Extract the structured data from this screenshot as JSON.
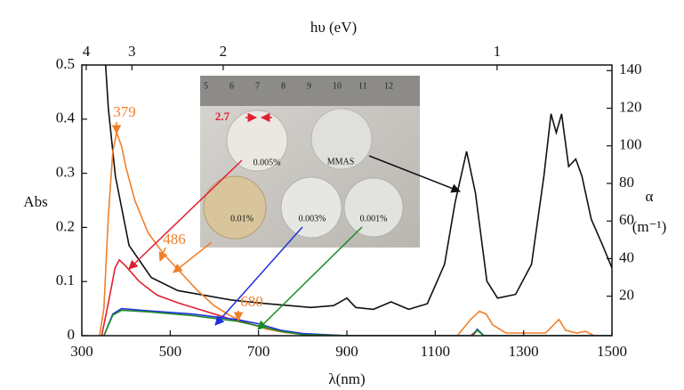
{
  "chart_data": {
    "type": "line",
    "xlabel": "λ(nm)",
    "ylabel": "Abs",
    "y2label": "α",
    "y2unit": "(m⁻¹)",
    "x2label": "hυ (eV)",
    "xlim": [
      300,
      1500
    ],
    "xticks": [
      300,
      500,
      700,
      900,
      1100,
      1300,
      1500
    ],
    "ylim": [
      0,
      0.5
    ],
    "yticks": [
      0,
      0.1,
      0.2,
      0.3,
      0.4,
      0.5
    ],
    "y2lim": [
      -1,
      143
    ],
    "y2ticks": [
      20,
      40,
      60,
      80,
      100,
      120,
      140
    ],
    "x2ticks": [
      4,
      3,
      2,
      1
    ],
    "series": [
      {
        "color": "#111111",
        "axis": "y2",
        "x": [
          352,
          360,
          376,
          407,
          457,
          517,
          638,
          719,
          819,
          870,
          900,
          920,
          960,
          1000,
          1040,
          1082,
          1121,
          1145,
          1171,
          1191,
          1217,
          1241,
          1282,
          1318,
          1346,
          1362,
          1374,
          1386,
          1402,
          1418,
          1432,
          1453,
          1479,
          1500
        ],
        "values": [
          150,
          120,
          84,
          47,
          30,
          23,
          18,
          16,
          14,
          15,
          19,
          14,
          13,
          17,
          13,
          16,
          37,
          70,
          97,
          75,
          28,
          19,
          21,
          37,
          84,
          117,
          107,
          117,
          89,
          93,
          84,
          61,
          47,
          35
        ]
      },
      {
        "color": "#f07f2a",
        "x": [
          340,
          350,
          360,
          370,
          379,
          390,
          400,
          420,
          450,
          486,
          520,
          560,
          600,
          640,
          680,
          720,
          760,
          800,
          850,
          900,
          1000,
          1150,
          1180,
          1200,
          1215,
          1230,
          1260,
          1350,
          1380,
          1395,
          1420,
          1440,
          1460
        ],
        "values": [
          0,
          0.05,
          0.22,
          0.34,
          0.375,
          0.35,
          0.31,
          0.25,
          0.19,
          0.15,
          0.12,
          0.085,
          0.055,
          0.035,
          0.022,
          0.012,
          0.006,
          0.003,
          0.001,
          0,
          0,
          0,
          0.03,
          0.045,
          0.04,
          0.02,
          0.005,
          0.005,
          0.03,
          0.01,
          0.005,
          0.008,
          0
        ]
      },
      {
        "color": "#e02030",
        "x": [
          345,
          360,
          375,
          385,
          400,
          430,
          470,
          520,
          580,
          640,
          700,
          750,
          800,
          900,
          1180,
          1195,
          1210,
          1500
        ],
        "values": [
          0,
          0.06,
          0.125,
          0.14,
          0.128,
          0.1,
          0.075,
          0.06,
          0.045,
          0.03,
          0.018,
          0.008,
          0.003,
          0,
          0,
          0.01,
          0,
          0
        ]
      },
      {
        "color": "#2030e0",
        "x": [
          350,
          370,
          390,
          450,
          550,
          650,
          700,
          750,
          800,
          900,
          1185,
          1195,
          1210,
          1500
        ],
        "values": [
          0,
          0.04,
          0.05,
          0.046,
          0.04,
          0.03,
          0.022,
          0.01,
          0.004,
          0,
          0,
          0.012,
          0,
          0
        ]
      },
      {
        "color": "#1a8a2a",
        "x": [
          350,
          370,
          390,
          450,
          550,
          650,
          700,
          750,
          800,
          900,
          1185,
          1195,
          1210,
          1500
        ],
        "values": [
          0,
          0.038,
          0.047,
          0.044,
          0.037,
          0.027,
          0.018,
          0.008,
          0.002,
          0,
          0,
          0.01,
          0,
          0
        ]
      }
    ],
    "annotations": [
      "379",
      "486",
      "680"
    ],
    "inset": {
      "ruler": [
        "5",
        "6",
        "7",
        "8",
        "9",
        "10",
        "11",
        "12"
      ],
      "gap": "2.7",
      "samples": [
        "0.005%",
        "MMAS",
        "0.01%",
        "0.003%",
        "0.001%"
      ]
    }
  }
}
